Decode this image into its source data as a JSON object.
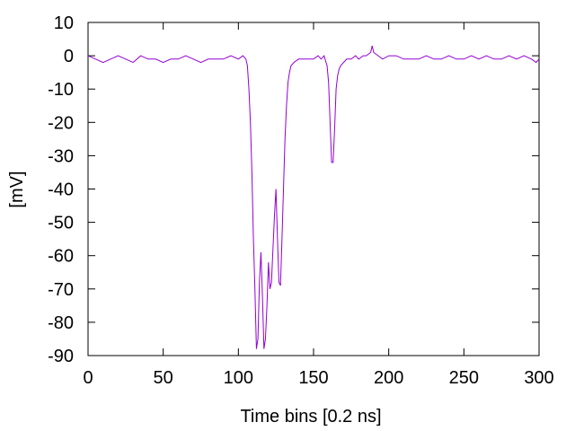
{
  "chart_data": {
    "type": "line",
    "xlabel": "Time bins [0.2 ns]",
    "ylabel": "[mV]",
    "xlim": [
      0,
      300
    ],
    "ylim": [
      -90,
      10
    ],
    "x_ticks": [
      0,
      50,
      100,
      150,
      200,
      250,
      300
    ],
    "y_ticks": [
      10,
      0,
      -10,
      -20,
      -30,
      -40,
      -50,
      -60,
      -70,
      -80,
      -90
    ],
    "grid": false,
    "line_color": "#9400d3",
    "series": [
      {
        "x": [
          0,
          5,
          10,
          15,
          20,
          25,
          30,
          35,
          40,
          45,
          50,
          55,
          60,
          65,
          70,
          75,
          80,
          85,
          90,
          95,
          100,
          103,
          105,
          106,
          107,
          108,
          109,
          110,
          111,
          112,
          113,
          114,
          115,
          116,
          117,
          118,
          119,
          120,
          121,
          122,
          123,
          124,
          125,
          126,
          127,
          128,
          129,
          130,
          131,
          132,
          133,
          134,
          135,
          137,
          140,
          143,
          146,
          150,
          153,
          155,
          157,
          159,
          160,
          161,
          162,
          163,
          164,
          165,
          166,
          167,
          168,
          170,
          172,
          175,
          178,
          180,
          183,
          185,
          188,
          189,
          190,
          193,
          196,
          200,
          205,
          210,
          215,
          220,
          225,
          230,
          235,
          240,
          245,
          250,
          255,
          260,
          265,
          270,
          275,
          280,
          285,
          290,
          295,
          298,
          300
        ],
        "y": [
          0,
          -1,
          -2,
          -1,
          0,
          -1,
          -2,
          0,
          -1,
          -1,
          -2,
          -1,
          -1,
          0,
          -1,
          -2,
          -1,
          -1,
          -1,
          0,
          -1,
          0,
          -1,
          -3,
          -10,
          -20,
          -35,
          -55,
          -70,
          -88,
          -85,
          -68,
          -59,
          -72,
          -88,
          -85,
          -75,
          -62,
          -70,
          -68,
          -58,
          -48,
          -40,
          -55,
          -68,
          -69,
          -55,
          -40,
          -25,
          -15,
          -8,
          -5,
          -3,
          -2,
          -1,
          -1,
          -1,
          -1,
          0,
          -1,
          0,
          -3,
          -8,
          -20,
          -32,
          -32,
          -22,
          -10,
          -6,
          -4,
          -3,
          -2,
          -1,
          -1,
          0,
          -1,
          0,
          0,
          1,
          3,
          1,
          0,
          -1,
          0,
          0,
          -1,
          -1,
          -1,
          0,
          -1,
          -1,
          0,
          -1,
          -1,
          0,
          -1,
          0,
          -1,
          -1,
          0,
          -1,
          0,
          -1,
          -2,
          -1
        ]
      }
    ]
  }
}
